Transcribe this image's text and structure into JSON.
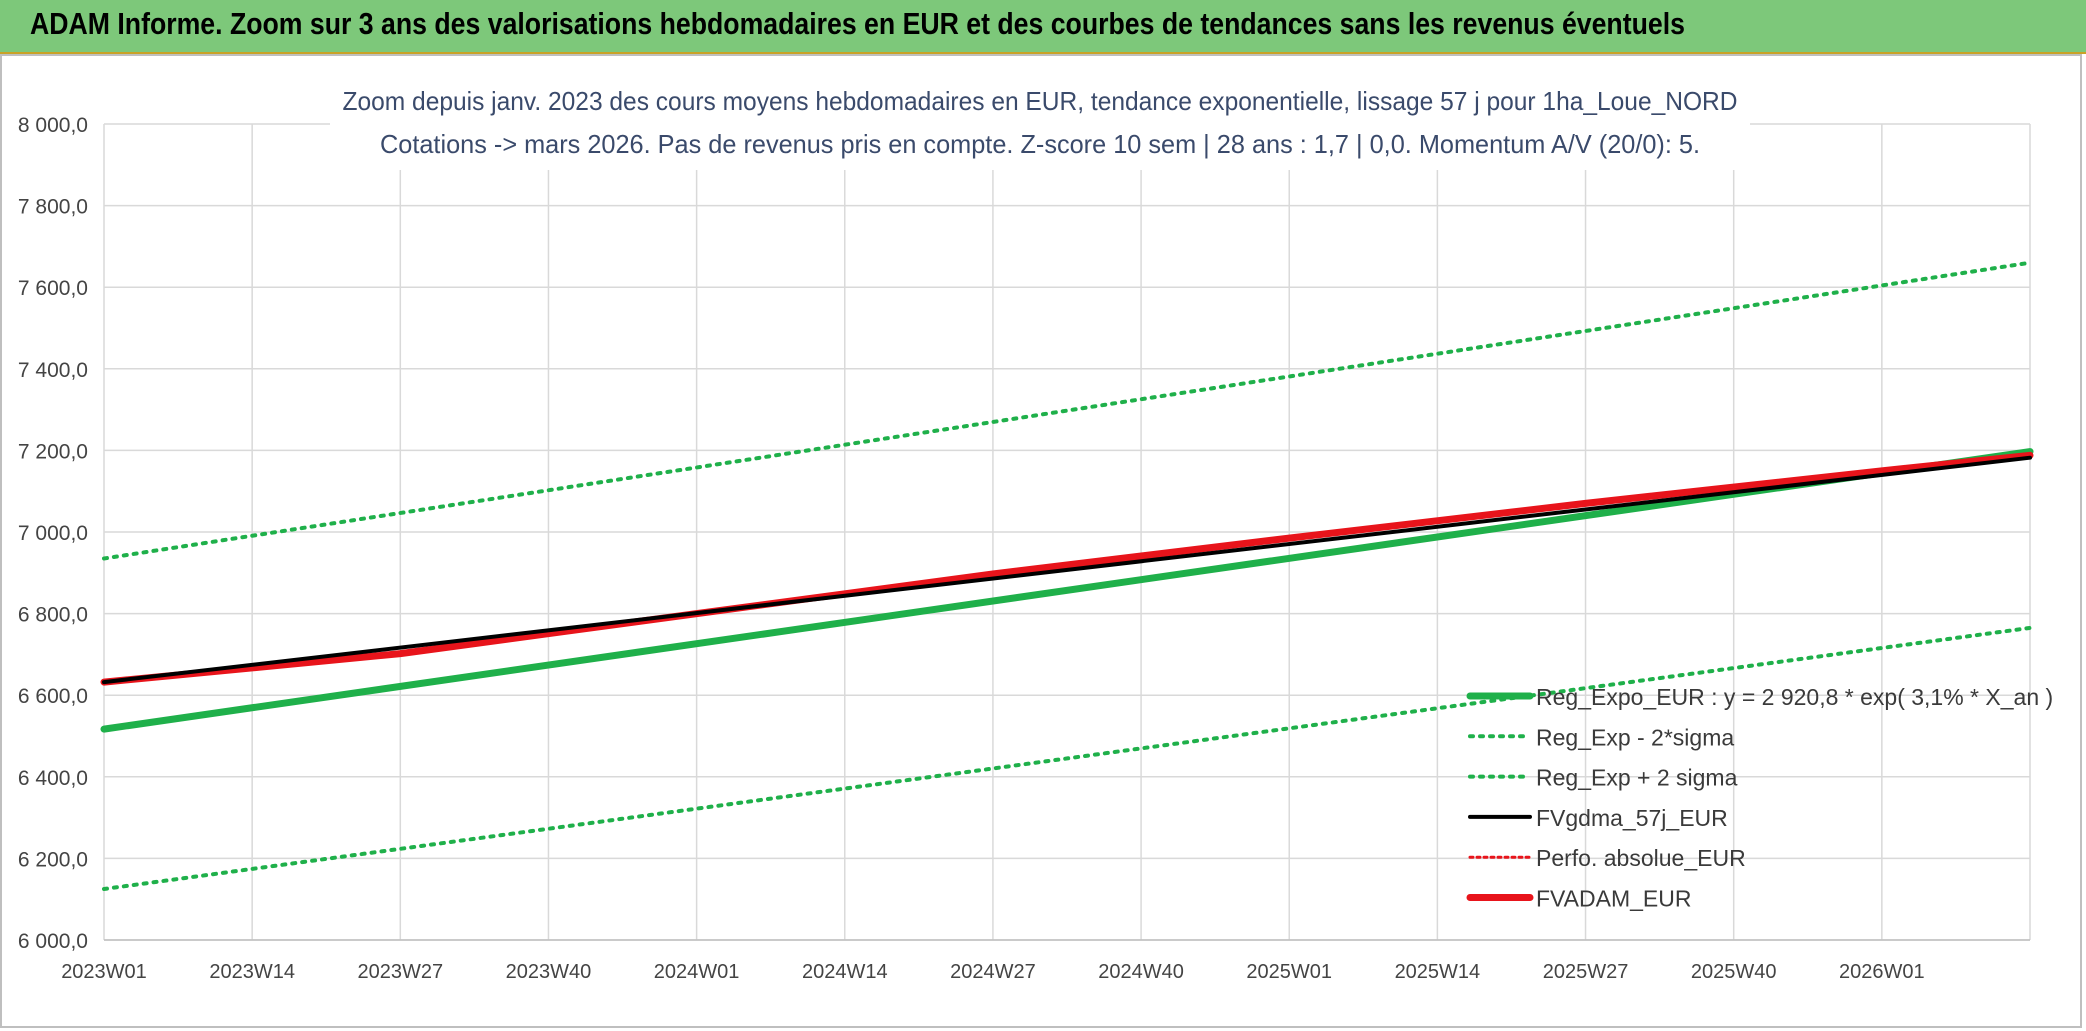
{
  "header": {
    "title": "ADAM Informe. Zoom sur 3 ans des valorisations hebdomadaires en EUR et des courbes de tendances sans les revenus éventuels"
  },
  "chart_data": {
    "type": "line",
    "title_line1": "Zoom depuis janv. 2023 des cours moyens hebdomadaires en EUR, tendance exponentielle, lissage 57 j pour 1ha_Loue_NORD",
    "title_line2": "Cotations -> mars 2026. Pas de revenus pris en compte. Z-score 10 sem | 28 ans : 1,7 | 0,0. Momentum A/V (20/0): 5.",
    "x_tick_labels": [
      "2023W01",
      "2023W14",
      "2023W27",
      "2023W40",
      "2024W01",
      "2024W14",
      "2024W27",
      "2024W40",
      "2025W01",
      "2025W14",
      "2025W27",
      "2025W40",
      "2026W01"
    ],
    "x_tick_positions": [
      0,
      13,
      26,
      39,
      52,
      65,
      78,
      91,
      104,
      117,
      130,
      143,
      156
    ],
    "x_range": [
      0,
      169
    ],
    "ylim": [
      6000,
      8000
    ],
    "y_ticks": [
      6000,
      6200,
      6400,
      6600,
      6800,
      7000,
      7200,
      7400,
      7600,
      7800,
      8000
    ],
    "y_tick_labels": [
      "6 000,0",
      "6 200,0",
      "6 400,0",
      "6 600,0",
      "6 800,0",
      "7 000,0",
      "7 200,0",
      "7 400,0",
      "7 600,0",
      "7 800,0",
      "8 000,0"
    ],
    "grid": true,
    "legend_position": "bottom-right",
    "series": [
      {
        "name": "Reg_Expo_EUR : y = 2 920,8 * exp( 3,1% *  X_an )",
        "color": "#1fb04a",
        "style": "solid-thick",
        "x": [
          0,
          169
        ],
        "y": [
          6517,
          7197
        ]
      },
      {
        "name": "Reg_Exp - 2*sigma",
        "color": "#1fb04a",
        "style": "dotted",
        "x": [
          0,
          169
        ],
        "y": [
          6125,
          6765
        ]
      },
      {
        "name": "Reg_Exp + 2 sigma",
        "color": "#1fb04a",
        "style": "dotted",
        "x": [
          0,
          169
        ],
        "y": [
          6935,
          7660
        ]
      },
      {
        "name": "FVgdma_57j_EUR",
        "color": "#000000",
        "style": "solid",
        "x": [
          0,
          169
        ],
        "y": [
          6632,
          7182
        ]
      },
      {
        "name": "Perfo. absolue_EUR",
        "color": "#e8141b",
        "style": "dotted-thin",
        "x": [],
        "y": []
      },
      {
        "name": "FVADAM_EUR",
        "color": "#e8141b",
        "style": "solid-thick",
        "x": [
          0,
          26,
          52,
          78,
          104,
          130,
          156,
          169
        ],
        "y": [
          6632,
          6702,
          6800,
          6897,
          6985,
          7070,
          7150,
          7188
        ]
      }
    ]
  }
}
